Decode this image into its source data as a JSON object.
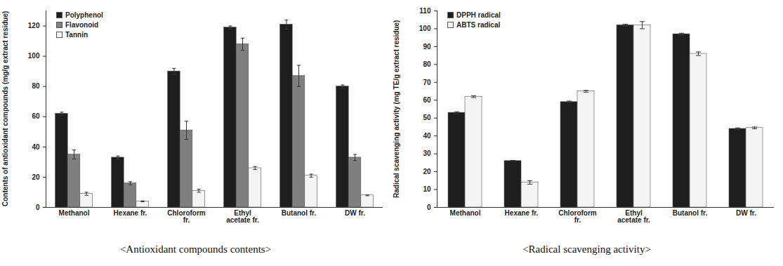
{
  "chart_data": [
    {
      "type": "bar",
      "caption": "<Antioxidant compounds contents>",
      "y_label": "Contents of antioxidant compounds (mg/g extract residue)",
      "categories": [
        "Methanol",
        "Hexane fr.",
        "Chloroform fr.",
        "Ethyl acetate fr.",
        "Butanol fr.",
        "DW fr."
      ],
      "series": [
        {
          "name": "Polyphenol",
          "color": "#1e1e1e",
          "values": [
            62,
            33,
            90,
            119,
            121,
            80
          ],
          "errors": [
            1,
            1,
            2,
            1,
            3,
            1
          ]
        },
        {
          "name": "Flavonoid",
          "color": "#7f7f7f",
          "values": [
            35,
            16,
            51,
            108,
            87,
            33
          ],
          "errors": [
            3,
            1,
            6,
            4,
            7,
            2
          ]
        },
        {
          "name": "Tannin",
          "color": "#f4f4f4",
          "values": [
            9,
            4,
            11,
            26,
            21,
            8
          ],
          "errors": [
            1,
            0.3,
            1,
            1,
            1,
            0.3
          ]
        }
      ],
      "ylim": [
        0,
        130
      ],
      "yticks": [
        0,
        20,
        40,
        60,
        80,
        100,
        120
      ],
      "grid": false,
      "legend": "top-left"
    },
    {
      "type": "bar",
      "caption": "<Radical scavenging activity>",
      "y_label": "Radical scavenging activity (mg TE/g extract residue)",
      "categories": [
        "Methanol",
        "Hexane fr.",
        "Chloroform fr.",
        "Ethyl acetate fr.",
        "Butanol fr.",
        "DW fr."
      ],
      "series": [
        {
          "name": "DPPH radical",
          "color": "#1e1e1e",
          "values": [
            53,
            26,
            59,
            102,
            97,
            44
          ],
          "errors": [
            0.5,
            0.3,
            0.5,
            0.5,
            0.5,
            0.5
          ]
        },
        {
          "name": "ABTS radical",
          "color": "#f4f4f4",
          "values": [
            62,
            14,
            65,
            102,
            86,
            44.5
          ],
          "errors": [
            0.5,
            1,
            0.5,
            2,
            1,
            0.5
          ]
        }
      ],
      "ylim": [
        0,
        110
      ],
      "yticks": [
        0,
        10,
        20,
        30,
        40,
        50,
        60,
        70,
        80,
        90,
        100,
        110
      ],
      "grid": false,
      "legend": "top-left"
    }
  ]
}
